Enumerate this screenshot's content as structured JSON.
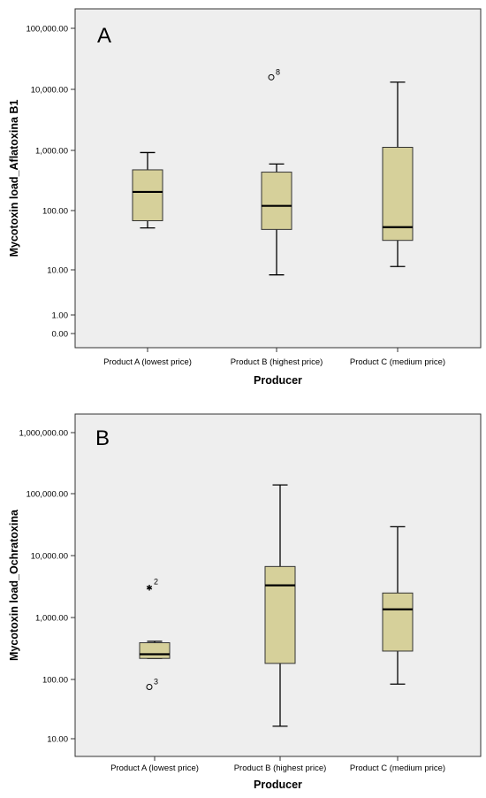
{
  "chart_data": [
    {
      "type": "box",
      "panel_label": "A",
      "xlabel": "Producer",
      "ylabel": "Mycotoxin load_Aflatoxina B1",
      "yscale": "log",
      "ytick_values": [
        0,
        1,
        10,
        100,
        1000,
        10000,
        100000
      ],
      "ytick_labels": [
        "0.00",
        "1.00",
        "10.00",
        "100.00",
        "1,000.00",
        "10,000.00",
        "100,000.00"
      ],
      "grid": false,
      "background": "#eeeeee",
      "box_color": "#d6d09a",
      "categories": [
        "Product A (lowest price)",
        "Product B (highest price)",
        "Product C (medium price)"
      ],
      "boxes": [
        {
          "category": "Product A (lowest price)",
          "min": 33,
          "q1": 44,
          "median": 140,
          "q3": 340,
          "max": 680,
          "outliers": []
        },
        {
          "category": "Product B (highest price)",
          "min": 5,
          "q1": 31,
          "median": 80,
          "q3": 310,
          "max": 430,
          "outliers": [
            {
              "value": 14000,
              "marker": "circle",
              "label": "8"
            }
          ]
        },
        {
          "category": "Product C (medium price)",
          "min": 7,
          "q1": 20,
          "median": 34,
          "q3": 840,
          "max": 11500,
          "outliers": []
        }
      ]
    },
    {
      "type": "box",
      "panel_label": "B",
      "xlabel": "Producer",
      "ylabel": "Mycotoxin load_Ochratoxina",
      "yscale": "log",
      "ytick_values": [
        10,
        100,
        1000,
        10000,
        100000,
        1000000
      ],
      "ytick_labels": [
        "10.00",
        "100.00",
        "1,000.00",
        "10,000.00",
        "100,000.00",
        "1,000,000.00"
      ],
      "grid": false,
      "background": "#eeeeee",
      "box_color": "#d6d09a",
      "categories": [
        "Product A (lowest price)",
        "Product B (highest price)",
        "Product C (medium price)"
      ],
      "boxes": [
        {
          "category": "Product A (lowest price)",
          "min": 205,
          "q1": 205,
          "median": 240,
          "q3": 370,
          "max": 390,
          "outliers": [
            {
              "value": 3000,
              "marker": "star",
              "label": "2"
            },
            {
              "value": 70,
              "marker": "circle",
              "label": "3"
            }
          ]
        },
        {
          "category": "Product B (highest price)",
          "min": 16,
          "q1": 170,
          "median": 3200,
          "q3": 6500,
          "max": 140000,
          "outliers": []
        },
        {
          "category": "Product C (medium price)",
          "min": 78,
          "q1": 270,
          "median": 1300,
          "q3": 2400,
          "max": 29000,
          "outliers": []
        }
      ]
    }
  ]
}
